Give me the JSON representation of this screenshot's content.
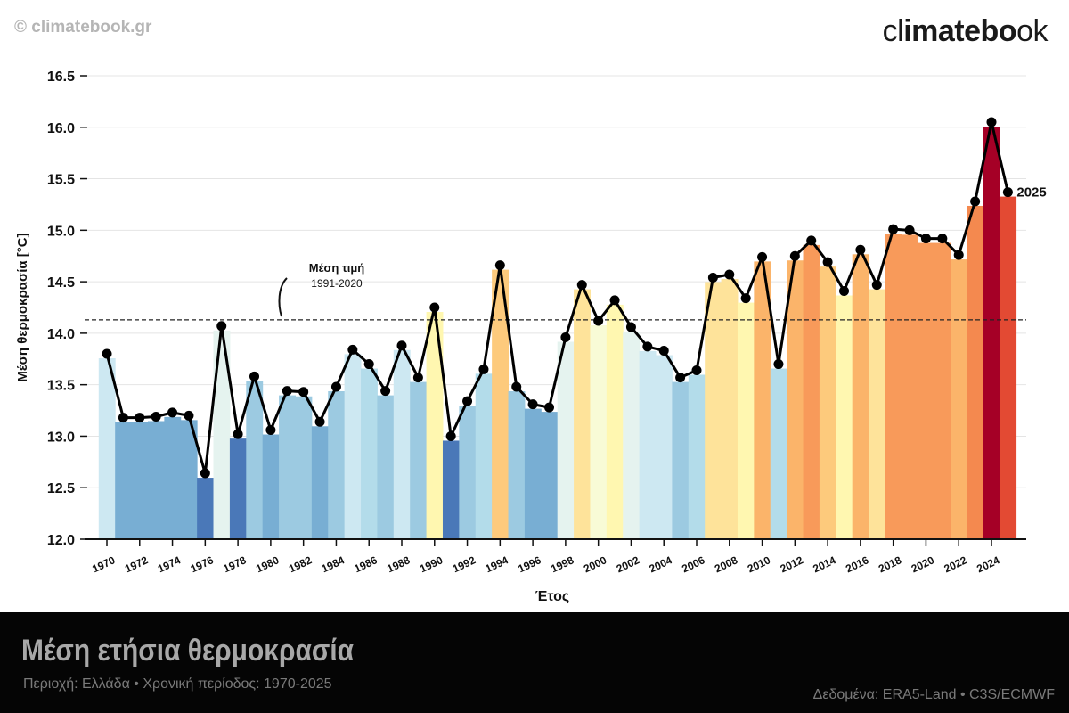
{
  "header": {
    "copyright": "© climatebook.gr",
    "logo_thin_start": "cl",
    "logo_bold": "imatebo",
    "logo_thin_end": "ok"
  },
  "footer": {
    "title": "Μέση ετήσια θερμοκρασία",
    "subtitle": "Περιοχή: Ελλάδα • Χρονική περίοδος: 1970-2025",
    "source": "Δεδομένα:  ERA5-Land • C3S/ECMWF"
  },
  "chart_data": {
    "type": "bar+line",
    "xlabel": "Έτος",
    "ylabel": "Μέση θερμοκρασία [°C]",
    "ylim": [
      12.0,
      16.5
    ],
    "yticks": [
      12.0,
      12.5,
      13.0,
      13.5,
      14.0,
      14.5,
      15.0,
      15.5,
      16.0,
      16.5
    ],
    "xticks": [
      1970,
      1972,
      1974,
      1976,
      1978,
      1980,
      1982,
      1984,
      1986,
      1988,
      1990,
      1992,
      1994,
      1996,
      1998,
      2000,
      2002,
      2004,
      2006,
      2008,
      2010,
      2012,
      2014,
      2016,
      2018,
      2020,
      2022,
      2024
    ],
    "grid": "horizontal",
    "reference": {
      "value": 14.13,
      "label": "Μέση τιμή",
      "sublabel": "1991-2020"
    },
    "last_label": "2025",
    "years": [
      1970,
      1971,
      1972,
      1973,
      1974,
      1975,
      1976,
      1977,
      1978,
      1979,
      1980,
      1981,
      1982,
      1983,
      1984,
      1985,
      1986,
      1987,
      1988,
      1989,
      1990,
      1991,
      1992,
      1993,
      1994,
      1995,
      1996,
      1997,
      1998,
      1999,
      2000,
      2001,
      2002,
      2003,
      2004,
      2005,
      2006,
      2007,
      2008,
      2009,
      2010,
      2011,
      2012,
      2013,
      2014,
      2015,
      2016,
      2017,
      2018,
      2019,
      2020,
      2021,
      2022,
      2023,
      2024,
      2025
    ],
    "values": [
      13.8,
      13.18,
      13.18,
      13.19,
      13.23,
      13.2,
      12.64,
      14.07,
      13.02,
      13.58,
      13.06,
      13.44,
      13.43,
      13.14,
      13.48,
      13.84,
      13.7,
      13.44,
      13.88,
      13.57,
      14.25,
      13.0,
      13.34,
      13.65,
      14.66,
      13.48,
      13.31,
      13.28,
      13.96,
      14.47,
      14.12,
      14.32,
      14.06,
      13.87,
      13.83,
      13.57,
      13.64,
      14.54,
      14.57,
      14.34,
      14.74,
      13.7,
      14.75,
      14.9,
      14.69,
      14.41,
      14.81,
      14.47,
      15.01,
      15.0,
      14.92,
      14.92,
      14.76,
      15.28,
      16.05,
      15.37
    ],
    "colorscale": [
      [
        -1.5,
        "#4a78b8"
      ],
      [
        -1.1,
        "#78aed3"
      ],
      [
        -0.8,
        "#9ccae1"
      ],
      [
        -0.55,
        "#b3dcea"
      ],
      [
        -0.35,
        "#cde8f2"
      ],
      [
        -0.2,
        "#e5f3ef"
      ],
      [
        -0.05,
        "#f8fbd6"
      ],
      [
        0.05,
        "#fff7b0"
      ],
      [
        0.3,
        "#fee39a"
      ],
      [
        0.45,
        "#fdca7c"
      ],
      [
        0.6,
        "#fbb46a"
      ],
      [
        0.75,
        "#f89a5a"
      ],
      [
        1.0,
        "#f4894f"
      ],
      [
        1.15,
        "#e34a33"
      ],
      [
        1.6,
        "#c9202c"
      ],
      [
        1.85,
        "#a50026"
      ]
    ]
  }
}
